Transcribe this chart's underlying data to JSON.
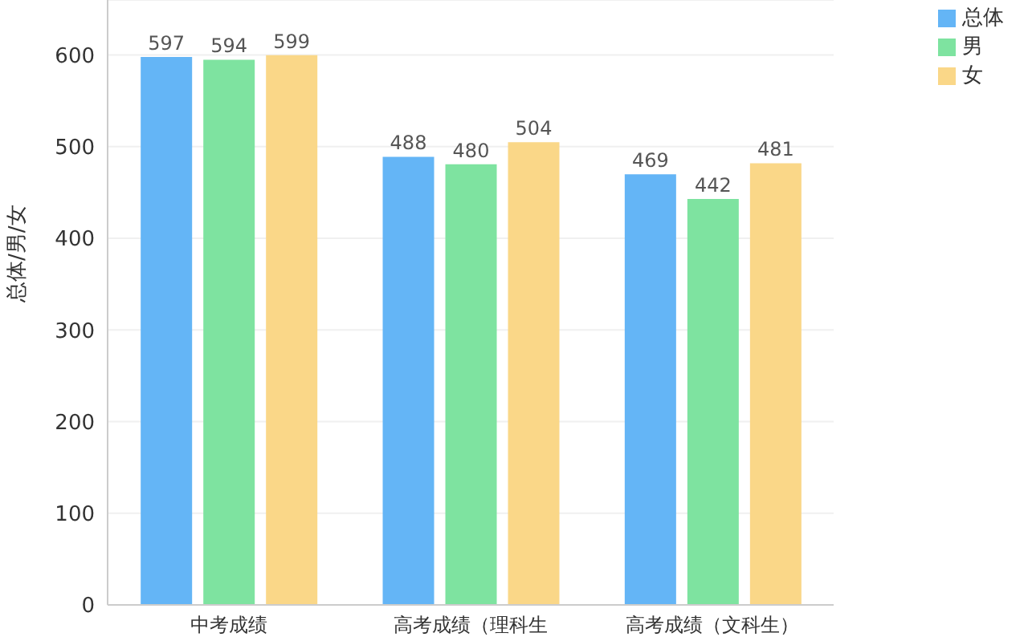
{
  "chart_data": {
    "type": "bar",
    "ylabel": "总体/男/女",
    "categories": [
      "中考成绩",
      "高考成绩（理科生",
      "高考成绩（文科生）"
    ],
    "series": [
      {
        "name": "总体",
        "color": "#64b5f6",
        "values": [
          597,
          488,
          469
        ]
      },
      {
        "name": "男",
        "color": "#7ee3a0",
        "values": [
          594,
          480,
          442
        ]
      },
      {
        "name": "女",
        "color": "#fad788",
        "values": [
          599,
          504,
          481
        ]
      }
    ],
    "ylim": [
      0,
      660
    ],
    "yticks": [
      0,
      100,
      200,
      300,
      400,
      500,
      600
    ],
    "grid": "y",
    "legend": "top right",
    "data_labels": true
  }
}
